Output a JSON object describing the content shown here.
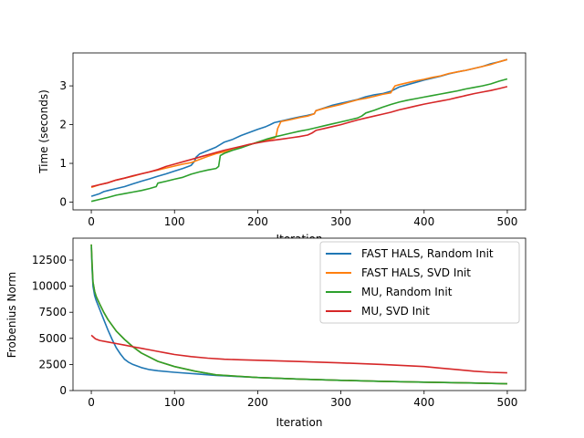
{
  "chart_data": [
    {
      "type": "line",
      "xlabel": "Iteration",
      "ylabel": "Time (seconds)",
      "xlim": [
        -22,
        522
      ],
      "ylim": [
        -0.2,
        3.85
      ],
      "xticks": [
        0,
        100,
        200,
        300,
        400,
        500
      ],
      "yticks": [
        0,
        1,
        2,
        3
      ],
      "xtick_labels": [
        "0",
        "100",
        "200",
        "300",
        "400",
        "500"
      ],
      "ytick_labels": [
        "0",
        "1",
        "2",
        "3"
      ],
      "grid": false,
      "legend": "none",
      "series": [
        {
          "name": "FAST HALS, Random Init",
          "color": "#1f77b4",
          "x": [
            0,
            10,
            15,
            20,
            30,
            40,
            50,
            60,
            70,
            80,
            90,
            100,
            110,
            120,
            124,
            126,
            130,
            140,
            150,
            160,
            170,
            180,
            190,
            200,
            210,
            215,
            220,
            230,
            240,
            250,
            260,
            268,
            270,
            280,
            290,
            300,
            310,
            320,
            330,
            340,
            350,
            360,
            370,
            380,
            390,
            400,
            410,
            420,
            430,
            440,
            450,
            460,
            470,
            480,
            490,
            500
          ],
          "y": [
            0.15,
            0.22,
            0.27,
            0.3,
            0.35,
            0.4,
            0.47,
            0.54,
            0.6,
            0.67,
            0.73,
            0.8,
            0.87,
            0.95,
            1.05,
            1.16,
            1.24,
            1.33,
            1.42,
            1.55,
            1.62,
            1.72,
            1.8,
            1.88,
            1.95,
            2.0,
            2.05,
            2.1,
            2.15,
            2.2,
            2.24,
            2.28,
            2.36,
            2.43,
            2.5,
            2.55,
            2.6,
            2.65,
            2.72,
            2.77,
            2.8,
            2.86,
            2.97,
            3.03,
            3.09,
            3.15,
            3.2,
            3.25,
            3.31,
            3.36,
            3.4,
            3.45,
            3.5,
            3.57,
            3.62,
            3.68
          ]
        },
        {
          "name": "FAST HALS, SVD Init",
          "color": "#ff7f0e",
          "x": [
            0,
            10,
            20,
            30,
            40,
            50,
            60,
            70,
            80,
            90,
            100,
            110,
            120,
            130,
            140,
            150,
            160,
            170,
            180,
            190,
            200,
            210,
            220,
            222,
            224,
            228,
            240,
            250,
            260,
            268,
            270,
            280,
            290,
            300,
            310,
            320,
            330,
            340,
            350,
            360,
            362,
            365,
            370,
            380,
            390,
            400,
            410,
            420,
            430,
            440,
            450,
            460,
            470,
            480,
            490,
            500
          ],
          "y": [
            0.38,
            0.45,
            0.5,
            0.57,
            0.62,
            0.67,
            0.73,
            0.78,
            0.83,
            0.88,
            0.93,
            0.98,
            1.02,
            1.1,
            1.18,
            1.25,
            1.3,
            1.35,
            1.42,
            1.48,
            1.55,
            1.6,
            1.65,
            1.7,
            1.9,
            2.08,
            2.13,
            2.18,
            2.22,
            2.28,
            2.36,
            2.42,
            2.47,
            2.52,
            2.58,
            2.64,
            2.68,
            2.73,
            2.78,
            2.82,
            2.9,
            3.0,
            3.03,
            3.08,
            3.13,
            3.17,
            3.22,
            3.26,
            3.32,
            3.36,
            3.4,
            3.45,
            3.5,
            3.55,
            3.62,
            3.68
          ]
        },
        {
          "name": "MU, Random Init",
          "color": "#2ca02c",
          "x": [
            0,
            10,
            20,
            30,
            40,
            50,
            60,
            70,
            78,
            80,
            90,
            100,
            110,
            120,
            130,
            140,
            150,
            153,
            155,
            160,
            170,
            180,
            190,
            200,
            210,
            220,
            230,
            240,
            250,
            260,
            270,
            280,
            290,
            300,
            310,
            320,
            325,
            330,
            340,
            350,
            360,
            370,
            380,
            390,
            400,
            410,
            420,
            430,
            440,
            450,
            460,
            470,
            480,
            490,
            500
          ],
          "y": [
            0.02,
            0.07,
            0.12,
            0.18,
            0.22,
            0.26,
            0.3,
            0.35,
            0.4,
            0.49,
            0.54,
            0.59,
            0.64,
            0.72,
            0.78,
            0.83,
            0.87,
            0.92,
            1.2,
            1.26,
            1.34,
            1.4,
            1.48,
            1.55,
            1.62,
            1.68,
            1.73,
            1.78,
            1.83,
            1.87,
            1.92,
            1.97,
            2.02,
            2.07,
            2.12,
            2.17,
            2.22,
            2.3,
            2.37,
            2.45,
            2.52,
            2.58,
            2.63,
            2.67,
            2.71,
            2.75,
            2.79,
            2.83,
            2.87,
            2.92,
            2.96,
            3.0,
            3.05,
            3.12,
            3.18
          ]
        },
        {
          "name": "MU, SVD Init",
          "color": "#d62728",
          "x": [
            0,
            10,
            20,
            30,
            40,
            50,
            60,
            70,
            80,
            90,
            100,
            110,
            120,
            130,
            140,
            150,
            160,
            170,
            180,
            190,
            200,
            210,
            220,
            230,
            240,
            250,
            260,
            265,
            270,
            280,
            290,
            300,
            310,
            320,
            330,
            340,
            350,
            360,
            370,
            380,
            390,
            400,
            410,
            420,
            430,
            440,
            450,
            460,
            470,
            480,
            490,
            500
          ],
          "y": [
            0.4,
            0.45,
            0.5,
            0.57,
            0.62,
            0.68,
            0.73,
            0.78,
            0.84,
            0.92,
            0.98,
            1.04,
            1.1,
            1.16,
            1.22,
            1.28,
            1.34,
            1.39,
            1.44,
            1.49,
            1.53,
            1.57,
            1.6,
            1.63,
            1.66,
            1.69,
            1.73,
            1.78,
            1.85,
            1.9,
            1.95,
            2.0,
            2.06,
            2.12,
            2.17,
            2.22,
            2.27,
            2.32,
            2.38,
            2.43,
            2.48,
            2.53,
            2.57,
            2.61,
            2.65,
            2.7,
            2.75,
            2.8,
            2.84,
            2.88,
            2.93,
            2.98
          ]
        }
      ]
    },
    {
      "type": "line",
      "xlabel": "Iteration",
      "ylabel": "Frobenius Norm",
      "xlim": [
        -22,
        522
      ],
      "ylim": [
        0,
        14600
      ],
      "xticks": [
        0,
        100,
        200,
        300,
        400,
        500
      ],
      "yticks": [
        0,
        2500,
        5000,
        7500,
        10000,
        12500
      ],
      "xtick_labels": [
        "0",
        "100",
        "200",
        "300",
        "400",
        "500"
      ],
      "ytick_labels": [
        "0",
        "2500",
        "5000",
        "7500",
        "10000",
        "12500"
      ],
      "grid": false,
      "legend": "top-right",
      "series": [
        {
          "name": "FAST HALS, Random Init",
          "color": "#1f77b4",
          "x": [
            0,
            1,
            2,
            4,
            6,
            10,
            15,
            20,
            25,
            30,
            35,
            40,
            45,
            50,
            60,
            70,
            80,
            100,
            125,
            150,
            200,
            250,
            300,
            350,
            400,
            450,
            500
          ],
          "y": [
            13700,
            11500,
            10000,
            9100,
            8600,
            7800,
            6800,
            5800,
            4900,
            4100,
            3500,
            3000,
            2700,
            2500,
            2200,
            2000,
            1900,
            1750,
            1600,
            1450,
            1250,
            1100,
            980,
            880,
            800,
            730,
            650
          ]
        },
        {
          "name": "FAST HALS, SVD Init",
          "color": "#ff7f0e",
          "x": [
            0,
            1,
            2,
            4,
            6,
            10,
            15,
            20,
            30,
            40,
            50,
            60,
            80,
            100,
            125,
            150,
            200,
            250,
            300,
            350,
            400,
            450,
            500
          ],
          "y": [
            14000,
            12000,
            10400,
            9500,
            9000,
            8300,
            7500,
            6800,
            5700,
            4900,
            4200,
            3600,
            2800,
            2300,
            1850,
            1500,
            1250,
            1100,
            980,
            880,
            800,
            730,
            650
          ]
        },
        {
          "name": "MU, Random Init",
          "color": "#2ca02c",
          "x": [
            0,
            1,
            2,
            4,
            6,
            10,
            15,
            20,
            30,
            40,
            50,
            60,
            80,
            100,
            125,
            150,
            200,
            250,
            300,
            350,
            400,
            450,
            500
          ],
          "y": [
            14000,
            12000,
            10400,
            9500,
            9000,
            8300,
            7500,
            6800,
            5700,
            4900,
            4200,
            3600,
            2800,
            2300,
            1850,
            1500,
            1250,
            1100,
            980,
            880,
            800,
            730,
            650
          ]
        },
        {
          "name": "MU, SVD Init",
          "color": "#d62728",
          "x": [
            0,
            5,
            10,
            20,
            30,
            40,
            50,
            60,
            70,
            80,
            90,
            100,
            120,
            140,
            160,
            180,
            200,
            250,
            300,
            350,
            400,
            420,
            440,
            460,
            480,
            500
          ],
          "y": [
            5300,
            4950,
            4800,
            4650,
            4500,
            4350,
            4200,
            4050,
            3900,
            3750,
            3600,
            3450,
            3250,
            3100,
            3000,
            2950,
            2900,
            2780,
            2650,
            2500,
            2300,
            2150,
            2000,
            1850,
            1750,
            1700
          ]
        }
      ]
    }
  ]
}
